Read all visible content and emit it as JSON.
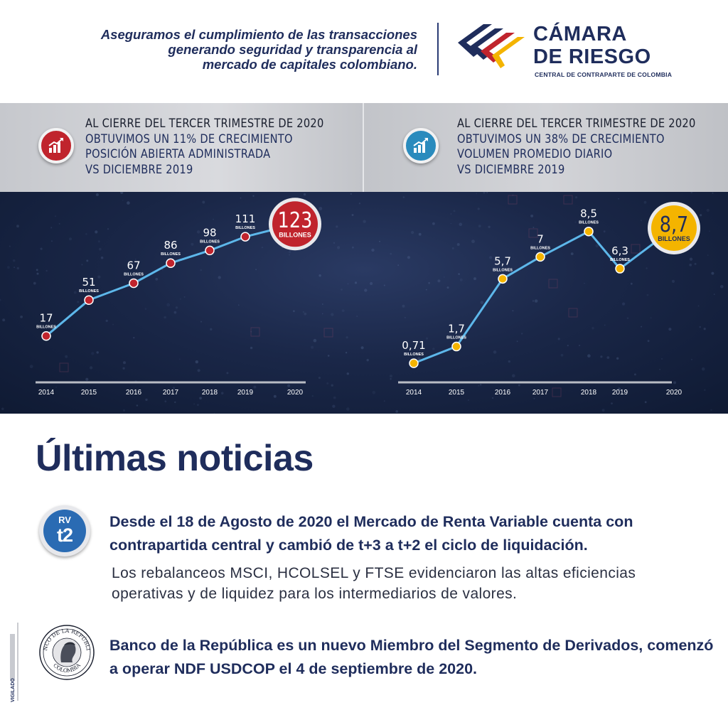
{
  "header": {
    "tagline": [
      "Aseguramos el cumplimiento de las transacciones",
      "generando seguridad y transparencia al",
      "mercado de capitales colombiano."
    ],
    "brand_line1": "CÁMARA",
    "brand_line2": "DE RIESGO",
    "brand_sub": "CENTRAL DE CONTRAPARTE DE COLOMBIA",
    "logo_colors": [
      "#1f2d5c",
      "#c0242d",
      "#f4b400"
    ]
  },
  "left_panel": {
    "icon": "growth-chart-icon",
    "lines": [
      "AL CIERRE DEL TERCER TRIMESTRE DE 2020",
      "OBTUVIMOS UN 11% DE CRECIMIENTO",
      "POSICIÓN ABIERTA ADMINISTRADA",
      "VS  DICIEMBRE 2019"
    ]
  },
  "right_panel": {
    "icon": "growth-chart-icon",
    "lines": [
      "AL CIERRE DEL TERCER TRIMESTRE DE 2020",
      "OBTUVIMOS UN 38% DE CRECIMIENTO",
      "VOLUMEN PROMEDIO DIARIO",
      "VS  DICIEMBRE 2019"
    ]
  },
  "chart_data": [
    {
      "type": "line",
      "x": [
        "2014",
        "2015",
        "2016",
        "2017",
        "2018",
        "2019",
        "2020"
      ],
      "values": [
        17,
        51,
        67,
        86,
        98,
        111,
        123
      ],
      "value_labels": [
        "17",
        "51",
        "67",
        "86",
        "98",
        "111",
        "123"
      ],
      "unit": "BILLONES",
      "highlight_last": true,
      "marker_color": "#c0242d",
      "line_color": "#5db7ea",
      "ylim": [
        0,
        140
      ]
    },
    {
      "type": "line",
      "x": [
        "2014",
        "2015",
        "2016",
        "2017",
        "2018",
        "2019",
        "2020"
      ],
      "values": [
        0.71,
        1.7,
        5.7,
        7,
        8.5,
        6.3,
        8.7
      ],
      "value_labels": [
        "0,71",
        "1,7",
        "5,7",
        "7",
        "8,5",
        "6,3",
        "8,7"
      ],
      "unit": "BILLONES",
      "highlight_last": true,
      "marker_color": "#f4b400",
      "line_color": "#5db7ea",
      "ylim": [
        0,
        10
      ]
    }
  ],
  "news": {
    "title": "Últimas noticias",
    "badge_top": "RV",
    "badge_bottom": "t2",
    "item1_head": "Desde el 18 de Agosto de 2020 el Mercado de Renta Variable cuenta con contrapartida central y cambió de t+3 a t+2 el ciclo de liquidación.",
    "item1_body": "Los rebalanceos MSCI, HCOLSEL y FTSE evidenciaron las altas eficiencias operativas y de liquidez para los intermediarios de valores.",
    "seal_top": "BANCO DE LA REPÚBLICA",
    "seal_bottom": "COLOMBIA",
    "item2": "Banco de la República es un nuevo Miembro del Segmento de Derivados, comenzó a operar NDF USDCOP el 4 de septiembre de 2020.",
    "vigilado": "VIGILADO"
  }
}
